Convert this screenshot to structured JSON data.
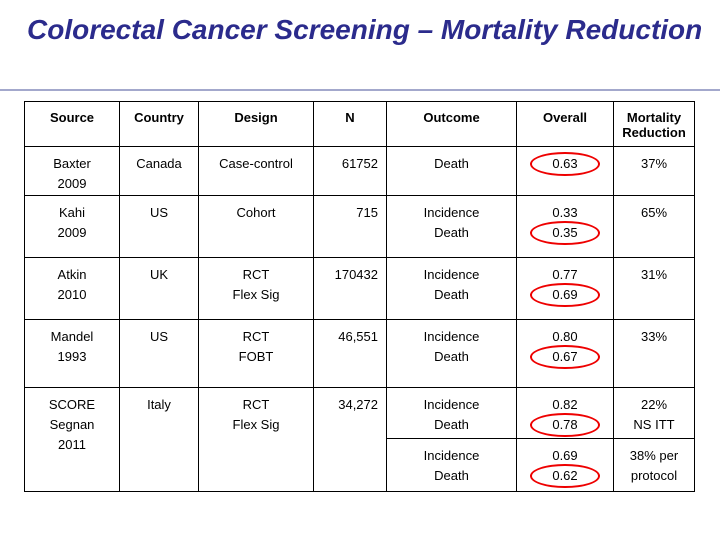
{
  "title": "Colorectal Cancer Screening – Mortality Reduction",
  "table": {
    "header": [
      "Source",
      "Country",
      "Design",
      "N",
      "Outcome",
      "Overall",
      "Mortality Reduction"
    ],
    "rows": [
      [
        [
          "Baxter",
          "2009"
        ],
        [
          "Canada"
        ],
        [
          "Case-control"
        ],
        [
          "61752"
        ],
        [
          "Death"
        ],
        [
          "0.63"
        ],
        [
          "37%"
        ]
      ],
      [
        [
          "Kahi",
          "2009"
        ],
        [
          "US"
        ],
        [
          "Cohort"
        ],
        [
          "715"
        ],
        [
          "Incidence",
          "Death"
        ],
        [
          "0.33",
          "0.35"
        ],
        [
          "65%"
        ]
      ],
      [
        [
          "Atkin",
          "2010"
        ],
        [
          "UK"
        ],
        [
          "RCT",
          "Flex Sig"
        ],
        [
          "170432"
        ],
        [
          "Incidence",
          "Death"
        ],
        [
          "0.77",
          "0.69"
        ],
        [
          "31%"
        ]
      ],
      [
        [
          "Mandel",
          "1993"
        ],
        [
          "US"
        ],
        [
          "RCT",
          "FOBT"
        ],
        [
          "46,551"
        ],
        [
          "Incidence",
          "Death"
        ],
        [
          "0.80",
          "0.67"
        ],
        [
          "33%"
        ]
      ],
      [
        [
          "SCORE",
          "Segnan",
          "2011"
        ],
        [
          "Italy"
        ],
        [
          "RCT",
          "Flex Sig"
        ],
        [
          "34,272"
        ],
        [
          "Incidence",
          "Death"
        ],
        [
          "0.82",
          "0.78"
        ],
        [
          "22%",
          "NS ITT"
        ]
      ],
      [
        [
          "Incidence",
          "Death"
        ],
        [
          "0.69",
          "0.62"
        ],
        [
          "38% per",
          "protocol"
        ]
      ]
    ]
  }
}
